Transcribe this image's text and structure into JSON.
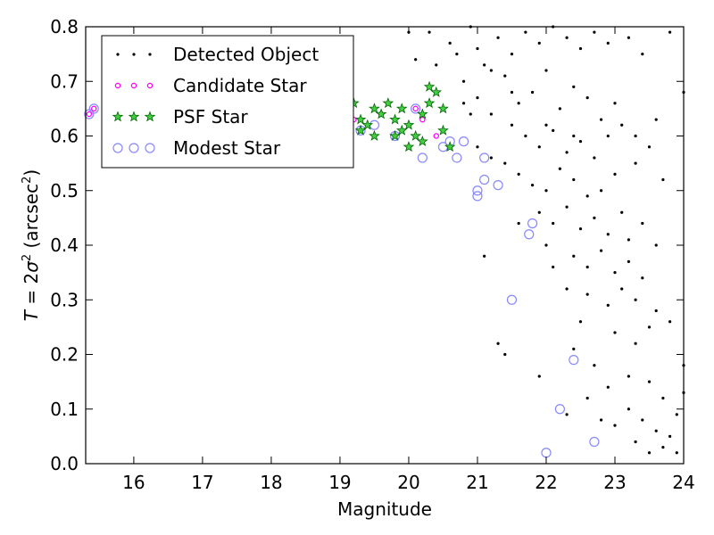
{
  "chart_data": {
    "type": "scatter",
    "xlabel": "Magnitude",
    "ylabel_parts": {
      "T": "T",
      "eq": " = 2",
      "sigma": "σ",
      "sup2": "2",
      "open": " (arcsec",
      "sup2b": "2",
      "close": ")"
    },
    "xlim": [
      15.3,
      24.0
    ],
    "ylim": [
      0.0,
      0.8
    ],
    "xticks": [
      16,
      17,
      18,
      19,
      20,
      21,
      22,
      23,
      24
    ],
    "yticks": [
      0.0,
      0.1,
      0.2,
      0.3,
      0.4,
      0.5,
      0.6,
      0.7,
      0.8
    ],
    "ytick_labels": [
      "0.0",
      "0.1",
      "0.2",
      "0.3",
      "0.4",
      "0.5",
      "0.6",
      "0.7",
      "0.8"
    ],
    "legend_position": "top-left",
    "series": [
      {
        "name": "Detected Object",
        "marker": "dot",
        "color": "#000000",
        "points": [
          [
            20.3,
            0.79
          ],
          [
            20.6,
            0.77
          ],
          [
            20.9,
            0.8
          ],
          [
            21.0,
            0.76
          ],
          [
            21.1,
            0.73
          ],
          [
            21.3,
            0.78
          ],
          [
            21.5,
            0.75
          ],
          [
            21.7,
            0.79
          ],
          [
            21.9,
            0.77
          ],
          [
            22.1,
            0.8
          ],
          [
            22.3,
            0.78
          ],
          [
            22.5,
            0.76
          ],
          [
            22.7,
            0.79
          ],
          [
            22.9,
            0.77
          ],
          [
            23.2,
            0.78
          ],
          [
            23.4,
            0.75
          ],
          [
            23.8,
            0.79
          ],
          [
            24.0,
            0.68
          ],
          [
            23.6,
            0.63
          ],
          [
            20.8,
            0.7
          ],
          [
            21.0,
            0.67
          ],
          [
            21.2,
            0.64
          ],
          [
            21.4,
            0.71
          ],
          [
            21.6,
            0.66
          ],
          [
            21.8,
            0.68
          ],
          [
            22.0,
            0.72
          ],
          [
            22.2,
            0.65
          ],
          [
            22.4,
            0.69
          ],
          [
            22.6,
            0.67
          ],
          [
            22.8,
            0.63
          ],
          [
            21.5,
            0.62
          ],
          [
            21.7,
            0.6
          ],
          [
            21.9,
            0.58
          ],
          [
            22.1,
            0.61
          ],
          [
            22.3,
            0.57
          ],
          [
            22.5,
            0.59
          ],
          [
            22.7,
            0.56
          ],
          [
            22.9,
            0.6
          ],
          [
            23.1,
            0.62
          ],
          [
            21.6,
            0.53
          ],
          [
            21.8,
            0.51
          ],
          [
            22.0,
            0.5
          ],
          [
            22.2,
            0.54
          ],
          [
            22.4,
            0.52
          ],
          [
            22.6,
            0.49
          ],
          [
            22.8,
            0.5
          ],
          [
            23.0,
            0.53
          ],
          [
            23.3,
            0.55
          ],
          [
            21.9,
            0.46
          ],
          [
            22.1,
            0.44
          ],
          [
            22.3,
            0.47
          ],
          [
            22.5,
            0.43
          ],
          [
            22.7,
            0.45
          ],
          [
            22.9,
            0.42
          ],
          [
            23.1,
            0.46
          ],
          [
            23.4,
            0.44
          ],
          [
            22.4,
            0.38
          ],
          [
            22.6,
            0.36
          ],
          [
            22.8,
            0.39
          ],
          [
            23.0,
            0.35
          ],
          [
            23.2,
            0.37
          ],
          [
            23.4,
            0.34
          ],
          [
            21.1,
            0.38
          ],
          [
            21.6,
            0.44
          ],
          [
            22.6,
            0.31
          ],
          [
            22.9,
            0.29
          ],
          [
            23.1,
            0.32
          ],
          [
            23.3,
            0.3
          ],
          [
            23.6,
            0.28
          ],
          [
            22.5,
            0.26
          ],
          [
            23.0,
            0.24
          ],
          [
            23.3,
            0.22
          ],
          [
            23.5,
            0.25
          ],
          [
            21.3,
            0.22
          ],
          [
            21.4,
            0.2
          ],
          [
            22.4,
            0.21
          ],
          [
            22.7,
            0.18
          ],
          [
            22.9,
            0.14
          ],
          [
            23.2,
            0.16
          ],
          [
            23.5,
            0.15
          ],
          [
            23.7,
            0.12
          ],
          [
            23.9,
            0.09
          ],
          [
            21.9,
            0.16
          ],
          [
            23.2,
            0.1
          ],
          [
            23.4,
            0.08
          ],
          [
            23.6,
            0.06
          ],
          [
            23.3,
            0.04
          ],
          [
            23.5,
            0.02
          ],
          [
            23.7,
            0.03
          ],
          [
            23.8,
            0.05
          ],
          [
            24.0,
            0.13
          ],
          [
            23.9,
            0.02
          ],
          [
            22.8,
            0.08
          ],
          [
            23.0,
            0.07
          ],
          [
            22.6,
            0.12
          ],
          [
            22.3,
            0.09
          ],
          [
            20.1,
            0.74
          ],
          [
            20.4,
            0.73
          ],
          [
            20.7,
            0.75
          ],
          [
            20.8,
            0.66
          ],
          [
            20.9,
            0.64
          ],
          [
            21.0,
            0.58
          ],
          [
            21.2,
            0.56
          ],
          [
            21.4,
            0.55
          ],
          [
            21.5,
            0.68
          ],
          [
            21.2,
            0.72
          ],
          [
            22.0,
            0.62
          ],
          [
            22.4,
            0.6
          ],
          [
            23.0,
            0.66
          ],
          [
            23.3,
            0.6
          ],
          [
            23.5,
            0.58
          ],
          [
            23.7,
            0.52
          ],
          [
            22.1,
            0.36
          ],
          [
            22.3,
            0.32
          ],
          [
            22.0,
            0.4
          ],
          [
            23.2,
            0.41
          ],
          [
            23.6,
            0.4
          ],
          [
            23.8,
            0.26
          ],
          [
            24.0,
            0.18
          ],
          [
            20.0,
            0.79
          ]
        ]
      },
      {
        "name": "Candidate Star",
        "marker": "small-circle",
        "color": "#ff00ff",
        "points": [
          [
            15.35,
            0.64
          ],
          [
            15.42,
            0.65
          ],
          [
            20.1,
            0.65
          ],
          [
            20.2,
            0.63
          ],
          [
            19.2,
            0.63
          ],
          [
            19.6,
            0.64
          ],
          [
            20.4,
            0.6
          ]
        ]
      },
      {
        "name": "PSF Star",
        "marker": "star",
        "color": "#00aa00",
        "points": [
          [
            19.1,
            0.64
          ],
          [
            19.2,
            0.66
          ],
          [
            19.3,
            0.63
          ],
          [
            19.4,
            0.62
          ],
          [
            19.5,
            0.65
          ],
          [
            19.6,
            0.64
          ],
          [
            19.7,
            0.66
          ],
          [
            19.8,
            0.63
          ],
          [
            19.9,
            0.61
          ],
          [
            20.0,
            0.62
          ],
          [
            20.1,
            0.6
          ],
          [
            20.2,
            0.64
          ],
          [
            20.3,
            0.66
          ],
          [
            20.4,
            0.68
          ],
          [
            20.5,
            0.65
          ],
          [
            20.3,
            0.69
          ],
          [
            20.5,
            0.61
          ],
          [
            19.5,
            0.6
          ],
          [
            19.8,
            0.6
          ],
          [
            20.0,
            0.58
          ],
          [
            20.2,
            0.59
          ],
          [
            20.6,
            0.58
          ],
          [
            19.3,
            0.61
          ],
          [
            19.9,
            0.65
          ]
        ]
      },
      {
        "name": "Modest Star",
        "marker": "open-circle",
        "color": "#8888ff",
        "points": [
          [
            15.35,
            0.64
          ],
          [
            15.42,
            0.65
          ],
          [
            19.3,
            0.61
          ],
          [
            19.5,
            0.62
          ],
          [
            19.8,
            0.6
          ],
          [
            20.1,
            0.65
          ],
          [
            20.2,
            0.56
          ],
          [
            20.5,
            0.58
          ],
          [
            20.6,
            0.59
          ],
          [
            20.7,
            0.56
          ],
          [
            20.8,
            0.59
          ],
          [
            21.1,
            0.56
          ],
          [
            21.1,
            0.52
          ],
          [
            21.3,
            0.51
          ],
          [
            21.0,
            0.49
          ],
          [
            21.0,
            0.5
          ],
          [
            21.8,
            0.44
          ],
          [
            21.75,
            0.42
          ],
          [
            21.5,
            0.3
          ],
          [
            22.4,
            0.19
          ],
          [
            22.2,
            0.1
          ],
          [
            22.7,
            0.04
          ],
          [
            22.0,
            0.02
          ]
        ]
      }
    ]
  }
}
